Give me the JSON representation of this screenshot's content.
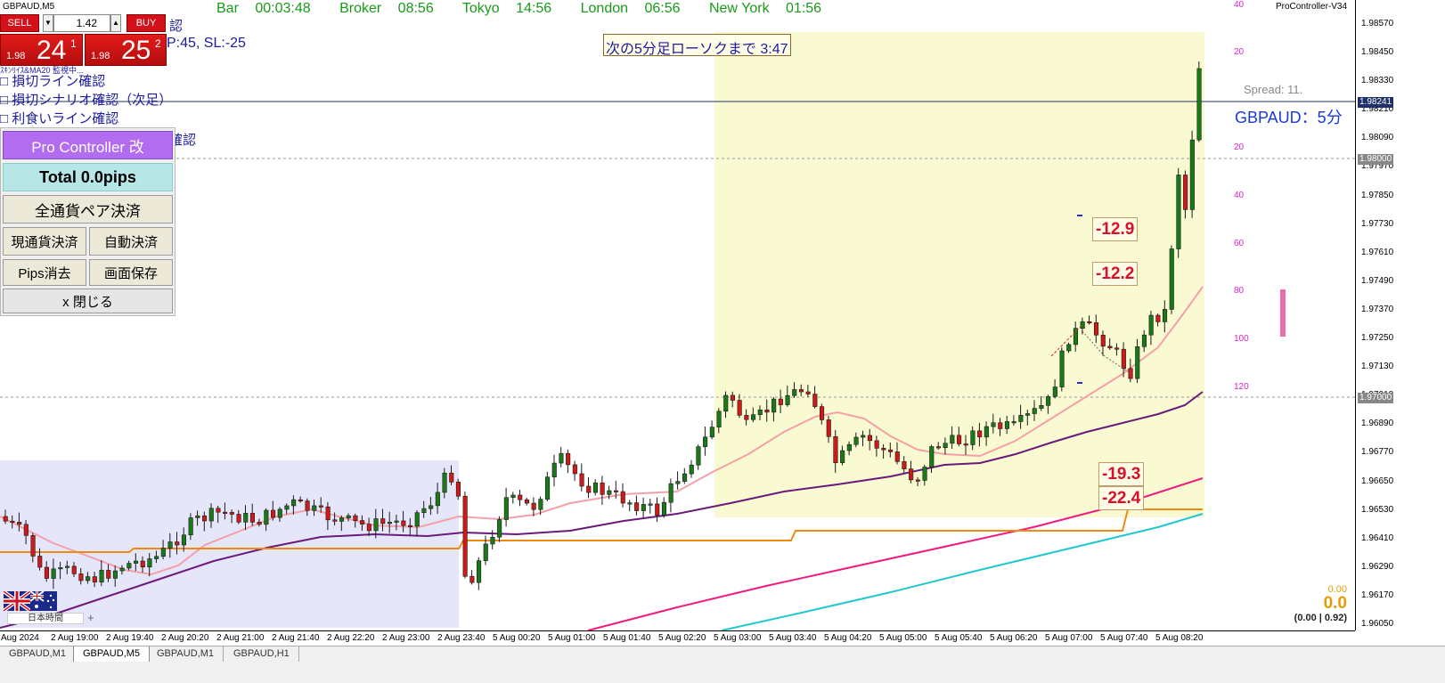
{
  "window": {
    "symbol_title": "GBPAUD,M5",
    "version": "ProController-V34"
  },
  "trade_panel": {
    "sell_label": "SELL",
    "buy_label": "BUY",
    "lot": "1.42",
    "sell_price_small": "1.98",
    "sell_price_big": "24",
    "sell_price_sup": "1",
    "buy_price_small": "1.98",
    "buy_price_big": "25",
    "buy_price_sup": "2"
  },
  "sessions": [
    {
      "name": "Bar",
      "time": "00:03:48"
    },
    {
      "name": "Broker",
      "time": "08:56"
    },
    {
      "name": "Tokyo",
      "time": "14:56"
    },
    {
      "name": "London",
      "time": "06:56"
    },
    {
      "name": "New York",
      "time": "01:56"
    }
  ],
  "checklist": {
    "line0": "認",
    "line1": "P:45, SL:-25",
    "line2": "ｽｷﾝﾘｲｽ&MA20 監視中...",
    "line3": "□  損切ライン確認",
    "line4": "□  損切シナリオ確認（次足）",
    "line5": "□  利食いライン確認",
    "line6": "確認"
  },
  "pro_controller": {
    "title": "Pro Controller 改",
    "total": "Total    0.0pips",
    "close_all": "全通貨ペア決済",
    "close_current": "現通貨決済",
    "auto_close": "自動決済",
    "clear_pips": "Pips消去",
    "save_screen": "画面保存",
    "close": "x 閉じる"
  },
  "countdown": "次の5分足ローソクまで 3:47",
  "pair_label": "GBPAUD：5分",
  "spread": "Spread: 11.",
  "pips_labels": [
    "-12.9",
    "-12.2",
    "-19.3",
    "-22.4"
  ],
  "pl": {
    "small": "0.00",
    "big": "0.0",
    "paren": "(0.00 | 0.92)"
  },
  "jp_time_label": "日本時間",
  "plus": "+",
  "ruler_labels": [
    "40",
    "20",
    "20",
    "40",
    "60",
    "80",
    "100",
    "120"
  ],
  "tabs": [
    "GBPAUD,M1",
    "GBPAUD,M5",
    "GBPAUD,M1",
    "GBPAUD,H1"
  ],
  "colors": {
    "bull": "#1a7a1a",
    "bear": "#d01a1a",
    "ma_pink": "#f4a0a8",
    "ma_purple": "#6a1a7a",
    "ma_magenta": "#f01a80",
    "ma_cyan": "#20c8d0",
    "ma_orange": "#f08a10",
    "london_box": "#fafad2",
    "tokyo_box": "#e6e6fa"
  },
  "chart_data": {
    "type": "candlestick",
    "symbol": "GBPAUD",
    "timeframe": "M5",
    "price_ticks": [
      "1.98570",
      "1.98450",
      "1.98330",
      "1.98210",
      "1.98090",
      "1.97970",
      "1.97850",
      "1.97730",
      "1.97610",
      "1.97490",
      "1.97370",
      "1.97250",
      "1.97130",
      "1.97010",
      "1.96890",
      "1.96770",
      "1.96650",
      "1.96530",
      "1.96410",
      "1.96290",
      "1.96170",
      "1.96050"
    ],
    "price_tags": [
      {
        "label": "1.98241",
        "price": 1.98241
      },
      {
        "label": "1.98000",
        "price": 1.98
      },
      {
        "label": "1.97000",
        "price": 1.97
      }
    ],
    "time_ticks": [
      "Aug 2024",
      "2 Aug 19:00",
      "2 Aug 19:40",
      "2 Aug 20:20",
      "2 Aug 21:00",
      "2 Aug 21:40",
      "2 Aug 22:20",
      "2 Aug 23:00",
      "2 Aug 23:40",
      "5 Aug 00:20",
      "5 Aug 01:00",
      "5 Aug 01:40",
      "5 Aug 02:20",
      "5 Aug 03:00",
      "5 Aug 03:40",
      "5 Aug 04:20",
      "5 Aug 05:00",
      "5 Aug 05:40",
      "5 Aug 06:20",
      "5 Aug 07:00",
      "5 Aug 07:40",
      "5 Aug 08:20"
    ],
    "horizontal_lines": [
      1.98241,
      1.98,
      1.97
    ]
  }
}
